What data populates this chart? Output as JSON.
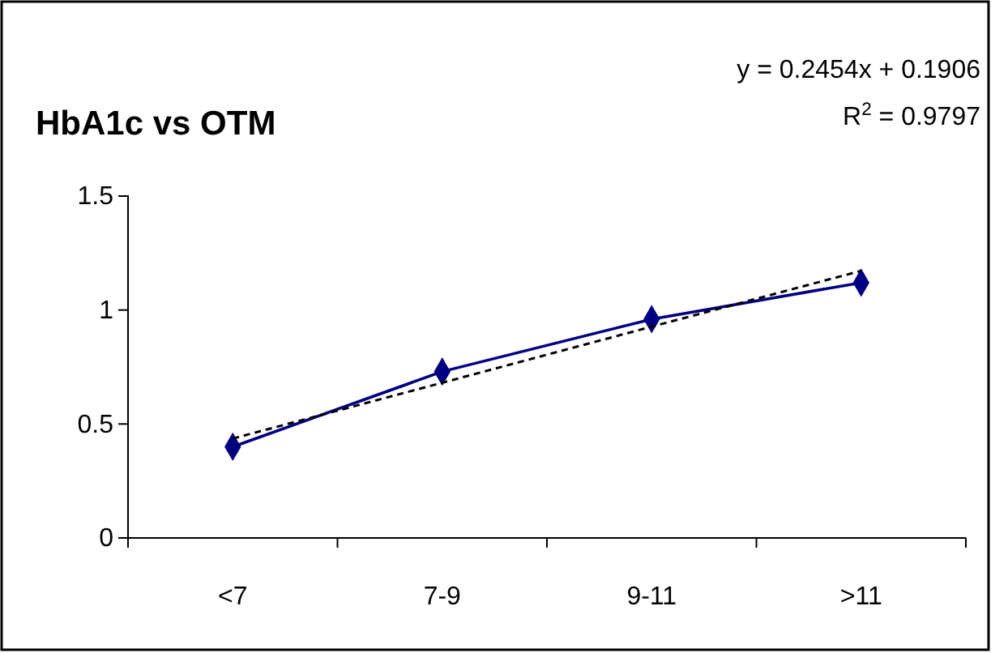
{
  "chart_data": {
    "type": "line",
    "title": "HbA1c vs OTM",
    "categories": [
      "<7",
      "7-9",
      "9-11",
      ">11"
    ],
    "series": [
      {
        "color": "#000080",
        "values": [
          0.4,
          0.73,
          0.96,
          1.12
        ],
        "marker": "diamond",
        "line_style": "solid"
      },
      {
        "type": "line",
        "color": "#000000",
        "values": [
          0.436,
          0.681,
          0.927,
          1.172
        ],
        "marker": "none",
        "line_style": "dashed"
      }
    ],
    "ylim": [
      0,
      1.5
    ],
    "yticks": [
      0,
      0.5,
      1,
      1.5
    ],
    "grid": false,
    "annotations": [
      "y = 0.2454x + 0.1906",
      "R$^{2}$ = 0.9797"
    ]
  }
}
